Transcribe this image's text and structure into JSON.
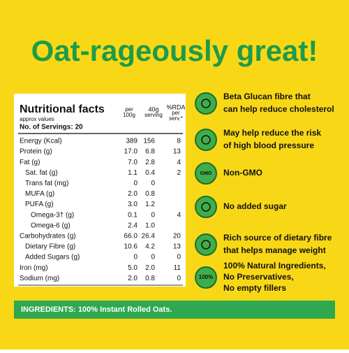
{
  "title": "Oat-rageously great!",
  "nutrition": {
    "heading": "Nutritional facts",
    "note": "approx values",
    "servings": "No. of Servings: 20",
    "columns": [
      [
        "per",
        "100g"
      ],
      [
        "40g",
        "serving"
      ],
      [
        "%RDA",
        "per",
        "serv.*"
      ]
    ],
    "rows": [
      [
        "Energy (Kcal)",
        "389",
        "156",
        "8"
      ],
      [
        "Protein (g)",
        "17.0",
        "6.8",
        "13"
      ],
      [
        "Fat (g)",
        "7.0",
        "2.8",
        "4"
      ],
      [
        "Sat. fat (g)",
        "1.1",
        "0.4",
        "2"
      ],
      [
        "Trans fat (mg)",
        "0",
        "0"
      ],
      [
        "MUFA (g)",
        "2.0",
        "0.8"
      ],
      [
        "PUFA (g)",
        "3.0",
        "1.2"
      ],
      [
        "Omega-3† (g)",
        "0.1",
        "0",
        "4"
      ],
      [
        "Omega-6 (g)",
        "2.4",
        "1.0"
      ],
      [
        "Carbohydrates (g)",
        "66.0",
        "26.4",
        "20"
      ],
      [
        "Dietary Fibre (g)",
        "10.6",
        "4.2",
        "13"
      ],
      [
        "Added Sugars (g)",
        "0",
        "0",
        "0"
      ],
      [
        "Iron (mg)",
        "5.0",
        "2.0",
        "11"
      ],
      [
        "Sodium (mg)",
        "2.0",
        "0.8",
        "0"
      ]
    ]
  },
  "benefits": [
    {
      "lines": [
        "Beta Glucan fibre that",
        "can help reduce cholesterol"
      ]
    },
    {
      "lines": [
        "May help reduce the risk",
        "of high blood pressure"
      ]
    },
    {
      "lines": [
        "Non-GMO"
      ],
      "icon": "GMO"
    },
    {
      "lines": [
        "No added sugar"
      ]
    },
    {
      "lines": [
        "Rich source of dietary fibre",
        "that helps manage weight"
      ]
    },
    {
      "lines": [
        "100% Natural Ingredients,",
        "No Preservatives,",
        "No empty fillers"
      ],
      "icon": "100%"
    }
  ],
  "ingredients": "INGREDIENTS: 100% Instant Rolled Oats."
}
